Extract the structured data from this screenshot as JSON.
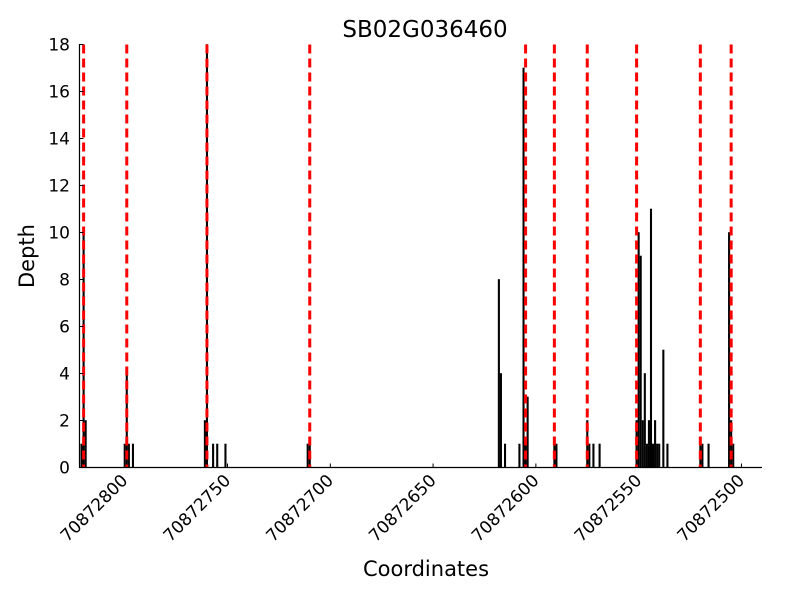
{
  "chart_data": {
    "type": "bar",
    "title": "SB02G036460",
    "xlabel": "Coordinates",
    "ylabel": "Depth",
    "x_axis_reversed": true,
    "xlim": [
      70872822,
      70872490
    ],
    "ylim": [
      0,
      18
    ],
    "x_ticks": [
      70872800,
      70872750,
      70872700,
      70872650,
      70872600,
      70872550,
      70872500
    ],
    "x_tick_labels": [
      "70872800",
      "70872750",
      "70872700",
      "70872650",
      "70872600",
      "70872550",
      "70872500"
    ],
    "y_ticks": [
      0,
      2,
      4,
      6,
      8,
      10,
      12,
      14,
      16,
      18
    ],
    "y_tick_labels": [
      "0",
      "2",
      "4",
      "6",
      "8",
      "10",
      "12",
      "14",
      "16",
      "18"
    ],
    "bar_color": "#000000",
    "marker_line_color": "#ff0000",
    "grid": false,
    "series": [
      {
        "x": [
          70872821,
          70872820,
          70872819,
          70872800,
          70872799,
          70872798,
          70872796,
          70872761,
          70872760,
          70872757,
          70872755,
          70872751,
          70872711,
          70872710,
          70872618,
          70872617,
          70872615,
          70872608,
          70872606,
          70872605,
          70872604,
          70872591,
          70872590,
          70872575,
          70872574,
          70872572,
          70872569,
          70872551,
          70872550,
          70872549,
          70872548,
          70872547,
          70872546,
          70872545,
          70872544,
          70872543,
          70872542,
          70872541,
          70872540,
          70872538,
          70872536,
          70872520,
          70872519,
          70872516,
          70872506,
          70872505,
          70872504
        ],
        "values": [
          1,
          10,
          2,
          1,
          4,
          1,
          1,
          2,
          18,
          1,
          1,
          1,
          1,
          1,
          8,
          4,
          1,
          1,
          17,
          1,
          3,
          1,
          1,
          2,
          1,
          1,
          1,
          2,
          10,
          9,
          2,
          4,
          1,
          2,
          11,
          1,
          2,
          1,
          1,
          5,
          1,
          1,
          1,
          1,
          10,
          2,
          1
        ]
      }
    ],
    "vertical_markers": [
      70872820,
      70872799,
      70872760,
      70872710,
      70872605,
      70872591,
      70872575,
      70872551,
      70872520,
      70872505
    ]
  }
}
